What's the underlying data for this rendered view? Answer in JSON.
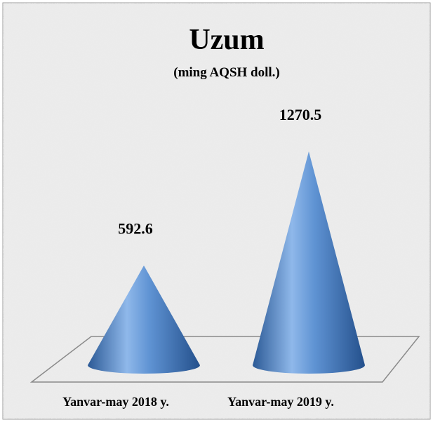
{
  "chart_data": {
    "type": "cone",
    "title": "Uzum",
    "subtitle": "(ming AQSH doll.)",
    "categories": [
      "Yanvar-may 2018 y.",
      "Yanvar-may 2019 y."
    ],
    "values": [
      592.6,
      1270.5
    ],
    "color": "#4a7fc4"
  }
}
